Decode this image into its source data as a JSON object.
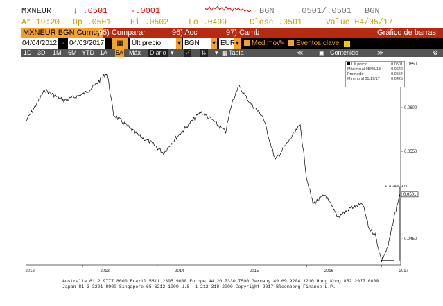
{
  "quote": {
    "ticker": "MXNEUR",
    "last": "↓ .0501",
    "change": "-.0001",
    "source": "BGN",
    "bid_ask": ".0501/.0501",
    "source2": "BGN",
    "at": "At 19:20",
    "open": "Op .0501",
    "high": "Hi .0502",
    "low": "Lo .0499",
    "close": "Close .0501",
    "value": "Value 04/05/17"
  },
  "function_bar": {
    "security": "MXNEUR BGN Curncy",
    "compare": "95) Comparar",
    "actions": "96) Acc",
    "change": "97) Camb",
    "title": "Gráfico de barras"
  },
  "settings_bar": {
    "start_date": "04/04/2012",
    "end_date": "04/03/2017",
    "field": "Últ precio",
    "source": "BGN",
    "currency": "EUR",
    "moving_avg": "Med móv",
    "key_events": "Eventos clave"
  },
  "period_bar": {
    "periods": [
      "1D",
      "3D",
      "1M",
      "6M",
      "YTD",
      "1A",
      "5A",
      "Máx"
    ],
    "selected": "5A",
    "frequency": "Diario",
    "table": "Tabla",
    "content": "Contenido"
  },
  "legend": {
    "rows": [
      {
        "label": "Últ precio",
        "value": "0.0501"
      },
      {
        "label": "Máximo al 05/09/13",
        "value": "0.0642"
      },
      {
        "label": "Promedio",
        "value": "0.0554"
      },
      {
        "label": "Mínimo al 01/19/17",
        "value": "0.0425"
      }
    ]
  },
  "annotations": {
    "delta": "+18.24%",
    "delta2": "+71"
  },
  "footer": {
    "line1": "Australia 61 2 9777 8600 Brazil 5511 2395 9000 Europe 44 20 7330 7500 Germany 49 69 9204 1210 Hong Kong 852 2977 6000",
    "line2": "Japan 81 3 3201 8900     Singapore 65 6212 1000    U.S. 1 212 318 2000     Copyright 2017 Bloomberg Finance L.P."
  },
  "colors": {
    "accent": "#f4a12a",
    "bar_red": "#b82a10",
    "down": "#e00000",
    "hi_lo": "#c8a000"
  },
  "chart_data": {
    "type": "line",
    "series": [
      {
        "name": "Últ precio"
      }
    ],
    "x_ticks": [
      "2012",
      "2013",
      "2014",
      "2015",
      "2016",
      "2017"
    ],
    "y_ticks": [
      "0.0650",
      "0.0600",
      "0.0550",
      "0.0501",
      "0.0450"
    ],
    "ylim": [
      0.042,
      0.065
    ],
    "x": [
      "2012-04",
      "2012-07",
      "2012-10",
      "2013-01",
      "2013-03",
      "2013-05",
      "2013-06",
      "2013-08",
      "2013-10",
      "2013-12",
      "2014-02",
      "2014-04",
      "2014-06",
      "2014-08",
      "2014-10",
      "2014-12",
      "2015-01",
      "2015-02",
      "2015-04",
      "2015-06",
      "2015-08",
      "2015-10",
      "2015-12",
      "2016-01",
      "2016-02",
      "2016-04",
      "2016-06",
      "2016-08",
      "2016-10",
      "2016-11",
      "2016-12",
      "2017-01",
      "2017-02",
      "2017-03",
      "2017-04"
    ],
    "values": [
      0.0585,
      0.062,
      0.0608,
      0.0615,
      0.0625,
      0.064,
      0.0592,
      0.058,
      0.0568,
      0.056,
      0.0548,
      0.0565,
      0.058,
      0.0595,
      0.0585,
      0.0572,
      0.0605,
      0.0625,
      0.0605,
      0.059,
      0.054,
      0.056,
      0.058,
      0.052,
      0.049,
      0.05,
      0.0475,
      0.0485,
      0.049,
      0.0462,
      0.0455,
      0.0425,
      0.044,
      0.0472,
      0.0501
    ],
    "grid": false,
    "legend_position": "top-right"
  }
}
